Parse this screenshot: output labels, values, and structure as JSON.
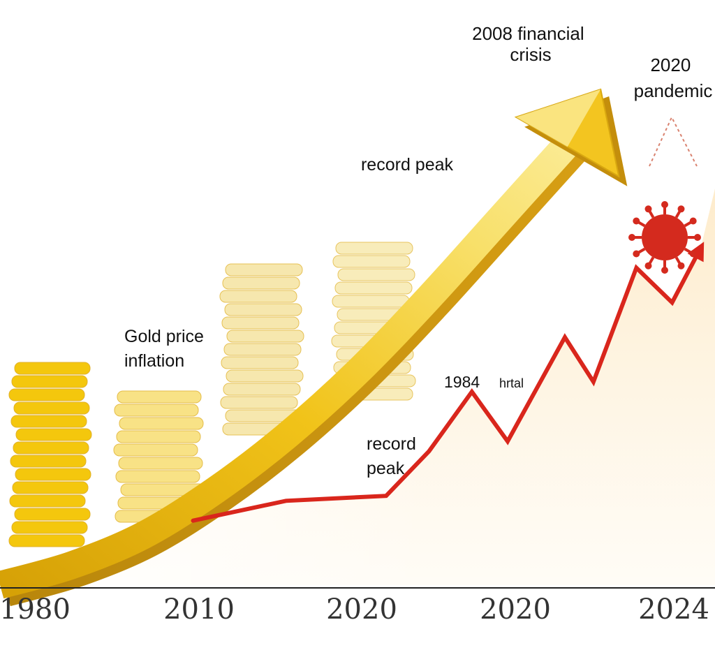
{
  "chart_data": {
    "type": "line",
    "title": "",
    "xlabel": "",
    "ylabel": "",
    "x_tick_labels": [
      "1980",
      "2010",
      "2020",
      "2020",
      "2024"
    ],
    "grid": false,
    "legend": "none",
    "series": [
      {
        "name": "",
        "style": "golden 3D arrow",
        "color": "#e7b514",
        "points": [
          [
            0,
            0
          ],
          [
            0.1,
            0.04
          ],
          [
            0.2,
            0.1
          ],
          [
            0.3,
            0.19
          ],
          [
            0.4,
            0.3
          ],
          [
            0.5,
            0.43
          ],
          [
            0.6,
            0.58
          ],
          [
            0.7,
            0.74
          ],
          [
            0.8,
            0.9
          ],
          [
            0.84,
            1.0
          ]
        ]
      },
      {
        "name": "",
        "style": "red zigzag arrow",
        "color": "#d9261c",
        "points": [
          [
            0.27,
            0.13
          ],
          [
            0.4,
            0.17
          ],
          [
            0.54,
            0.18
          ],
          [
            0.6,
            0.27
          ],
          [
            0.66,
            0.39
          ],
          [
            0.71,
            0.29
          ],
          [
            0.79,
            0.5
          ],
          [
            0.83,
            0.41
          ],
          [
            0.89,
            0.64
          ],
          [
            0.94,
            0.57
          ],
          [
            0.98,
            0.68
          ]
        ]
      }
    ],
    "annotations": [
      {
        "id": "financial",
        "text": "2008 financial crisis",
        "lines": [
          "2008 financial",
          "crisis"
        ]
      },
      {
        "id": "pandemic",
        "text": "2020 pandemic",
        "lines": [
          "2020",
          "pandemic"
        ]
      },
      {
        "id": "record_peak_top",
        "text": "record peak",
        "lines": [
          "record peak"
        ]
      },
      {
        "id": "gold_inflation",
        "text": "Gold price inflation",
        "lines": [
          "Gold price",
          "inflation"
        ]
      },
      {
        "id": "record_peak_low",
        "text": "record peak",
        "lines": [
          "record",
          "peak"
        ]
      },
      {
        "id": "year_1984_a",
        "text": "1984"
      },
      {
        "id": "year_1984_b",
        "text": "hrtal",
        "color": "#c9251c"
      }
    ],
    "decorations": [
      {
        "id": "coin-stack-1",
        "color": "#f4c70d"
      },
      {
        "id": "coin-stack-2",
        "color": "#f7de72"
      },
      {
        "id": "coin-stack-3",
        "color": "#f5e29a"
      },
      {
        "id": "coin-stack-4",
        "color": "#f6e6a3"
      },
      {
        "id": "virus-icon",
        "color": "#d42a1e"
      }
    ]
  }
}
